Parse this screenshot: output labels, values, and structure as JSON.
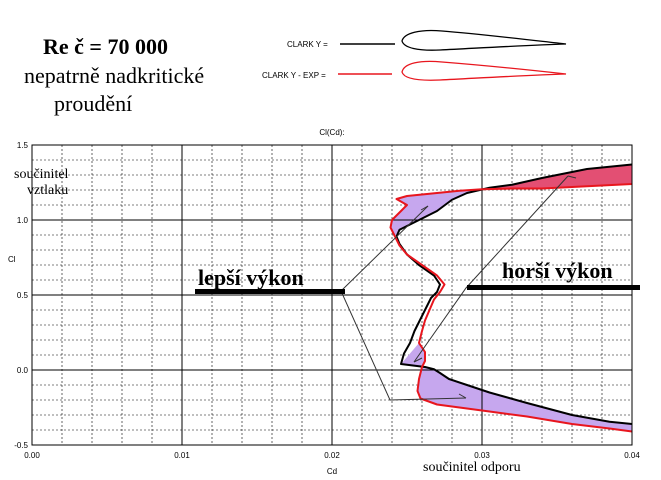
{
  "chart_data": {
    "type": "line",
    "title": "Cl(Cd):",
    "xlabel": "Cd",
    "ylabel": "Cl",
    "xlim": [
      0.0,
      0.04
    ],
    "ylim": [
      -0.5,
      1.5
    ],
    "grid": true,
    "x_ticks": [
      "0.00",
      "0.01",
      "0.02",
      "0.03",
      "0.04"
    ],
    "y_ticks": [
      "1.5",
      "1.0",
      "0.5",
      "0.0",
      "-0.5"
    ],
    "series": [
      {
        "name": "CLARK Y =",
        "color": "#000000",
        "points": [
          [
            0.04,
            1.37
          ],
          [
            0.037,
            1.34
          ],
          [
            0.034,
            1.28
          ],
          [
            0.032,
            1.235
          ],
          [
            0.0305,
            1.215
          ],
          [
            0.029,
            1.18
          ],
          [
            0.028,
            1.135
          ],
          [
            0.027,
            1.06
          ],
          [
            0.0262,
            1.02
          ],
          [
            0.0255,
            0.985
          ],
          [
            0.0245,
            0.935
          ],
          [
            0.0243,
            0.89
          ],
          [
            0.0245,
            0.84
          ],
          [
            0.025,
            0.77
          ],
          [
            0.0258,
            0.7
          ],
          [
            0.0268,
            0.63
          ],
          [
            0.0272,
            0.57
          ],
          [
            0.027,
            0.52
          ],
          [
            0.0266,
            0.48
          ],
          [
            0.0262,
            0.4
          ],
          [
            0.0258,
            0.32
          ],
          [
            0.0255,
            0.26
          ],
          [
            0.0252,
            0.18
          ],
          [
            0.0248,
            0.11
          ],
          [
            0.0246,
            0.04
          ],
          [
            0.0262,
            0.02
          ],
          [
            0.0268,
            0.005
          ],
          [
            0.0272,
            -0.02
          ],
          [
            0.0278,
            -0.06
          ],
          [
            0.029,
            -0.1
          ],
          [
            0.0305,
            -0.15
          ],
          [
            0.033,
            -0.22
          ],
          [
            0.036,
            -0.3
          ],
          [
            0.0385,
            -0.345
          ],
          [
            0.04,
            -0.36
          ]
        ]
      },
      {
        "name": "CLARK Y - EXP =",
        "color": "#e8161e",
        "points": [
          [
            0.04,
            1.24
          ],
          [
            0.037,
            1.225
          ],
          [
            0.034,
            1.21
          ],
          [
            0.032,
            1.21
          ],
          [
            0.03,
            1.205
          ],
          [
            0.0285,
            1.195
          ],
          [
            0.0265,
            1.175
          ],
          [
            0.025,
            1.16
          ],
          [
            0.0243,
            1.14
          ],
          [
            0.025,
            1.1
          ],
          [
            0.0245,
            1.05
          ],
          [
            0.024,
            1.0
          ],
          [
            0.0239,
            0.95
          ],
          [
            0.0242,
            0.89
          ],
          [
            0.0245,
            0.83
          ],
          [
            0.025,
            0.77
          ],
          [
            0.026,
            0.7
          ],
          [
            0.027,
            0.63
          ],
          [
            0.0275,
            0.57
          ],
          [
            0.0272,
            0.52
          ],
          [
            0.0268,
            0.47
          ],
          [
            0.0265,
            0.4
          ],
          [
            0.0262,
            0.33
          ],
          [
            0.026,
            0.26
          ],
          [
            0.0258,
            0.18
          ],
          [
            0.0262,
            0.12
          ],
          [
            0.0262,
            0.06
          ],
          [
            0.026,
            0.02
          ],
          [
            0.0258,
            -0.06
          ],
          [
            0.0257,
            -0.14
          ],
          [
            0.0259,
            -0.19
          ],
          [
            0.027,
            -0.23
          ],
          [
            0.03,
            -0.27
          ],
          [
            0.033,
            -0.31
          ],
          [
            0.036,
            -0.36
          ],
          [
            0.0385,
            -0.39
          ],
          [
            0.04,
            -0.41
          ]
        ]
      }
    ],
    "fills": [
      {
        "color": "#e34f73",
        "points": [
          [
            0.04,
            1.37
          ],
          [
            0.037,
            1.34
          ],
          [
            0.034,
            1.28
          ],
          [
            0.032,
            1.235
          ],
          [
            0.03,
            1.21
          ],
          [
            0.032,
            1.21
          ],
          [
            0.034,
            1.21
          ],
          [
            0.037,
            1.225
          ],
          [
            0.04,
            1.24
          ]
        ]
      },
      {
        "color": "#c6a7ee",
        "points": [
          [
            0.03,
            1.21
          ],
          [
            0.029,
            1.18
          ],
          [
            0.028,
            1.135
          ],
          [
            0.027,
            1.06
          ],
          [
            0.0262,
            1.02
          ],
          [
            0.0255,
            0.985
          ],
          [
            0.0245,
            0.935
          ],
          [
            0.0243,
            0.89
          ],
          [
            0.0239,
            0.95
          ],
          [
            0.024,
            1.0
          ],
          [
            0.0245,
            1.05
          ],
          [
            0.025,
            1.1
          ],
          [
            0.0243,
            1.14
          ],
          [
            0.025,
            1.16
          ],
          [
            0.0265,
            1.175
          ],
          [
            0.0285,
            1.195
          ]
        ]
      },
      {
        "color": "#c6a7ee",
        "points": [
          [
            0.0246,
            0.04
          ],
          [
            0.0262,
            0.02
          ],
          [
            0.0268,
            0.005
          ],
          [
            0.0272,
            -0.02
          ],
          [
            0.0278,
            -0.06
          ],
          [
            0.029,
            -0.1
          ],
          [
            0.0305,
            -0.15
          ],
          [
            0.033,
            -0.22
          ],
          [
            0.036,
            -0.3
          ],
          [
            0.0385,
            -0.345
          ],
          [
            0.04,
            -0.36
          ],
          [
            0.04,
            -0.41
          ],
          [
            0.0385,
            -0.39
          ],
          [
            0.036,
            -0.36
          ],
          [
            0.033,
            -0.31
          ],
          [
            0.03,
            -0.27
          ],
          [
            0.027,
            -0.23
          ],
          [
            0.0259,
            -0.19
          ],
          [
            0.0257,
            -0.14
          ],
          [
            0.0258,
            -0.06
          ],
          [
            0.026,
            0.02
          ],
          [
            0.0262,
            0.06
          ],
          [
            0.0262,
            0.12
          ],
          [
            0.0258,
            0.18
          ]
        ]
      }
    ],
    "annotations": {
      "heading": "Re č = 70 000",
      "subheading_line1": "nepatrně nadkritické",
      "subheading_line2": "proudění",
      "y_axis_note_line1": "součinitel",
      "y_axis_note_line2": "vztlaku",
      "x_axis_note": "součinitel odporu",
      "callout_left": "lepší výkon",
      "callout_right": "horší výkon"
    }
  }
}
